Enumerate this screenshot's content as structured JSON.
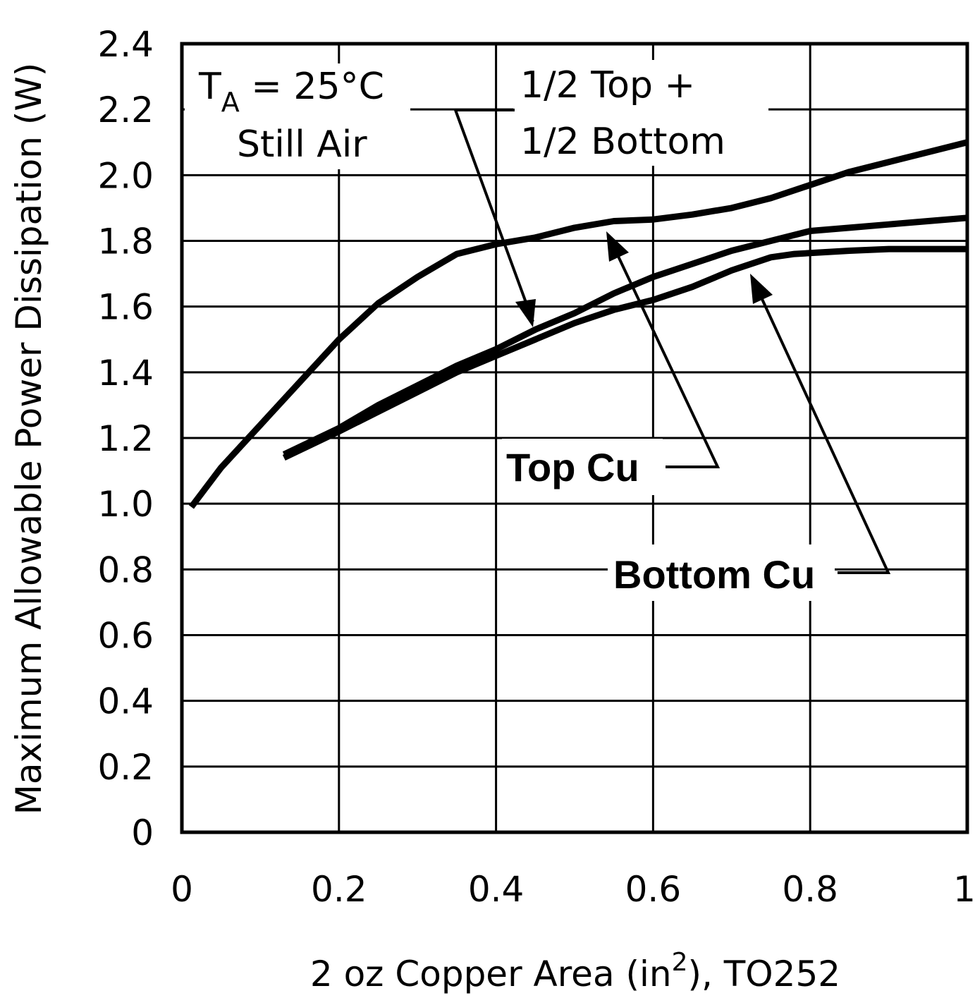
{
  "chart_data": {
    "type": "line",
    "title": "",
    "xlabel": "2 oz Copper Area (in",
    "xlabel_superscript": "2",
    "xlabel_suffix": "), TO252",
    "ylabel": "Maximum Allowable Power Dissipation (W)",
    "xlim": [
      0,
      1
    ],
    "ylim": [
      0,
      2.4
    ],
    "x_ticks": [
      "0",
      "0.2",
      "0.4",
      "0.6",
      "0.8",
      "1"
    ],
    "y_ticks": [
      "0",
      "0.2",
      "0.4",
      "0.6",
      "0.8",
      "1.0",
      "1.2",
      "1.4",
      "1.6",
      "1.8",
      "2.0",
      "2.2",
      "2.4"
    ],
    "grid": true,
    "series": [
      {
        "name": "Top Cu",
        "x": [
          0.012,
          0.05,
          0.1,
          0.15,
          0.2,
          0.25,
          0.3,
          0.35,
          0.4,
          0.45,
          0.5,
          0.55,
          0.6,
          0.65,
          0.7,
          0.75,
          0.8,
          0.85,
          0.9,
          0.95,
          1.0
        ],
        "y": [
          0.99,
          1.11,
          1.24,
          1.37,
          1.5,
          1.61,
          1.69,
          1.76,
          1.79,
          1.81,
          1.84,
          1.86,
          1.865,
          1.88,
          1.9,
          1.93,
          1.97,
          2.01,
          2.04,
          2.07,
          2.1
        ]
      },
      {
        "name": "1/2 Top + 1/2 Bottom",
        "x": [
          0.13,
          0.2,
          0.25,
          0.3,
          0.35,
          0.4,
          0.45,
          0.5,
          0.55,
          0.6,
          0.65,
          0.7,
          0.75,
          0.8,
          0.85,
          0.9,
          0.95,
          1.0
        ],
        "y": [
          1.15,
          1.23,
          1.3,
          1.36,
          1.42,
          1.47,
          1.53,
          1.58,
          1.64,
          1.69,
          1.73,
          1.77,
          1.8,
          1.83,
          1.84,
          1.85,
          1.86,
          1.87
        ]
      },
      {
        "name": "Bottom Cu",
        "x": [
          0.13,
          0.2,
          0.25,
          0.3,
          0.35,
          0.4,
          0.45,
          0.5,
          0.55,
          0.6,
          0.65,
          0.7,
          0.75,
          0.78,
          0.85,
          0.9,
          0.95,
          1.0
        ],
        "y": [
          1.14,
          1.22,
          1.28,
          1.34,
          1.4,
          1.45,
          1.5,
          1.55,
          1.59,
          1.62,
          1.66,
          1.71,
          1.75,
          1.76,
          1.77,
          1.775,
          1.775,
          1.775
        ]
      }
    ],
    "annotations": {
      "condition_T": "T",
      "condition_sub": "A",
      "condition_rest": " = 25°C",
      "condition_line2": "Still Air",
      "half_line1": "1/2 Top +",
      "half_line2": "1/2 Bottom",
      "top_cu": "Top Cu",
      "bottom_cu": "Bottom Cu"
    }
  }
}
